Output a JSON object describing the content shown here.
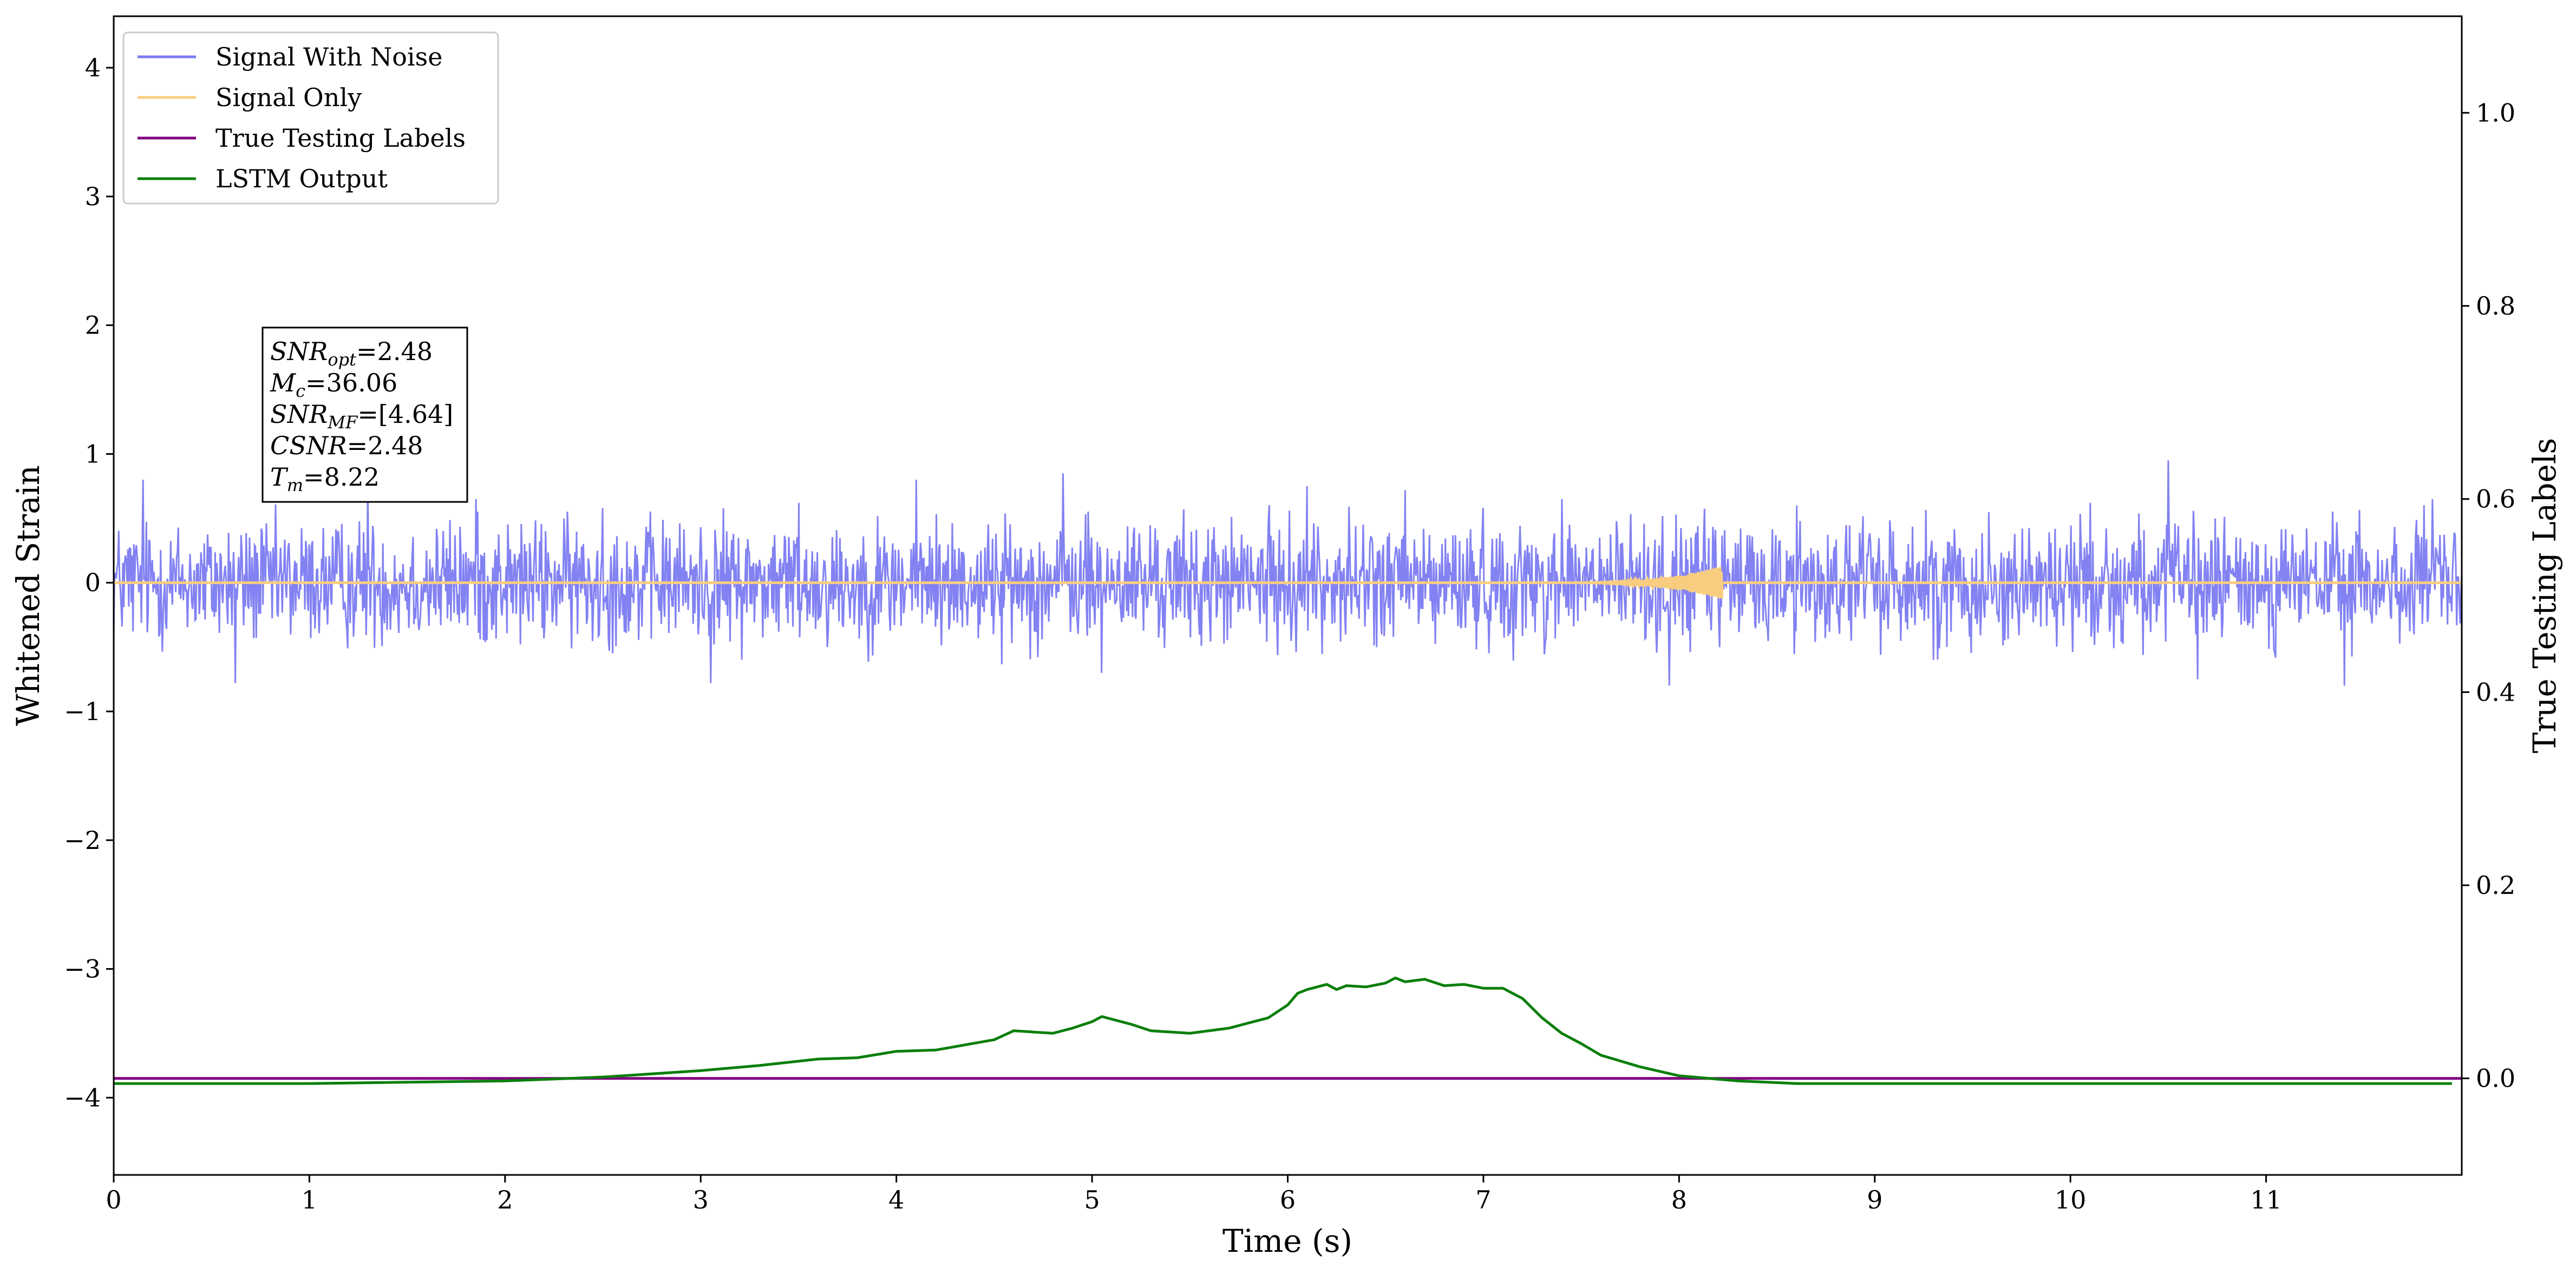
{
  "chart_data": {
    "type": "line",
    "title": "",
    "xlabel": "Time (s)",
    "ylabel": "Whitened Strain",
    "y2label": "True Testing Labels",
    "xlim": [
      0,
      12
    ],
    "ylim": [
      -4.6,
      4.4
    ],
    "y2lim": [
      -0.1,
      1.1
    ],
    "x_ticks": [
      0,
      1,
      2,
      3,
      4,
      5,
      6,
      7,
      8,
      9,
      10,
      11
    ],
    "y_ticks": [
      -4,
      -3,
      -2,
      -1,
      0,
      1,
      2,
      3,
      4
    ],
    "y2_ticks": [
      0.0,
      0.2,
      0.4,
      0.6,
      0.8,
      1.0
    ],
    "grid": false,
    "legend_position": "top-left",
    "colors": {
      "noise": "#7b7bf2",
      "signal": "#f8cd80",
      "labels": "#800080",
      "lstm": "#0b7f0b"
    },
    "series": [
      {
        "name": "Signal With Noise",
        "axis": "left",
        "kind": "noise",
        "center": 0,
        "typical_amplitude": 0.45,
        "peaks": [
          {
            "x": 0.15,
            "y": 0.8
          },
          {
            "x": 0.62,
            "y": -0.78
          },
          {
            "x": 1.3,
            "y": 0.75
          },
          {
            "x": 1.85,
            "y": 0.65
          },
          {
            "x": 2.5,
            "y": 0.58
          },
          {
            "x": 3.05,
            "y": -0.78
          },
          {
            "x": 3.5,
            "y": 0.62
          },
          {
            "x": 4.1,
            "y": 0.8
          },
          {
            "x": 4.85,
            "y": 0.85
          },
          {
            "x": 5.05,
            "y": -0.7
          },
          {
            "x": 6.1,
            "y": 0.75
          },
          {
            "x": 6.6,
            "y": 0.72
          },
          {
            "x": 7.4,
            "y": 0.65
          },
          {
            "x": 7.95,
            "y": -0.8
          },
          {
            "x": 8.6,
            "y": 0.6
          },
          {
            "x": 9.3,
            "y": -0.6
          },
          {
            "x": 10.1,
            "y": 0.62
          },
          {
            "x": 10.5,
            "y": 0.95
          },
          {
            "x": 10.65,
            "y": -0.75
          },
          {
            "x": 11.4,
            "y": -0.8
          },
          {
            "x": 11.85,
            "y": 0.65
          }
        ]
      },
      {
        "name": "Signal Only",
        "axis": "left",
        "kind": "chirp",
        "chirp_start_x": 7.3,
        "chirp_end_x": 8.22,
        "max_amplitude": 0.13
      },
      {
        "name": "True Testing Labels",
        "axis": "right",
        "x": [
          0,
          12
        ],
        "y": [
          0.0,
          0.0
        ]
      },
      {
        "name": "LSTM Output",
        "axis": "left",
        "x": [
          0,
          1.0,
          1.5,
          2.0,
          2.5,
          3.0,
          3.3,
          3.6,
          3.8,
          4.0,
          4.2,
          4.5,
          4.6,
          4.7,
          4.8,
          4.9,
          5.0,
          5.05,
          5.2,
          5.3,
          5.5,
          5.7,
          5.9,
          6.0,
          6.05,
          6.1,
          6.2,
          6.25,
          6.3,
          6.4,
          6.5,
          6.55,
          6.6,
          6.7,
          6.8,
          6.9,
          7.0,
          7.1,
          7.2,
          7.3,
          7.4,
          7.5,
          7.6,
          7.8,
          8.0,
          8.3,
          8.6,
          9.0,
          10.0,
          11.95
        ],
        "y": [
          -3.89,
          -3.89,
          -3.88,
          -3.87,
          -3.84,
          -3.79,
          -3.75,
          -3.7,
          -3.69,
          -3.64,
          -3.63,
          -3.55,
          -3.48,
          -3.49,
          -3.5,
          -3.46,
          -3.41,
          -3.37,
          -3.43,
          -3.48,
          -3.5,
          -3.46,
          -3.38,
          -3.28,
          -3.19,
          -3.16,
          -3.12,
          -3.16,
          -3.13,
          -3.14,
          -3.11,
          -3.07,
          -3.1,
          -3.08,
          -3.13,
          -3.12,
          -3.15,
          -3.15,
          -3.23,
          -3.38,
          -3.5,
          -3.58,
          -3.67,
          -3.76,
          -3.83,
          -3.87,
          -3.89,
          -3.89,
          -3.89,
          -3.89
        ]
      }
    ],
    "annotation": {
      "lines": [
        {
          "base": "SNR",
          "sub": "opt",
          "value": "=2.48"
        },
        {
          "base": "M",
          "sub": "c",
          "value": "=36.06"
        },
        {
          "base": "SNR",
          "sub": "MF",
          "value": "=[4.64]"
        },
        {
          "base": "CSNR",
          "sub": "",
          "value": "=2.48"
        },
        {
          "base": "T",
          "sub": "m",
          "value": "=8.22"
        }
      ]
    }
  }
}
